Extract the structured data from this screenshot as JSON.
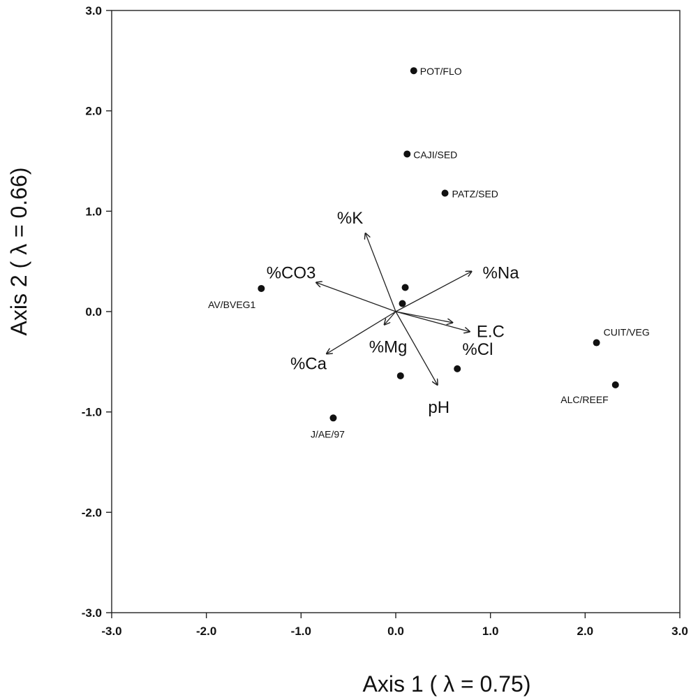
{
  "chart_data": {
    "type": "scatter",
    "title": "",
    "xlabel": "Axis 1 ( λ = 0.75)",
    "ylabel": "Axis 2 ( λ = 0.66)",
    "xlim": [
      -3.0,
      3.0
    ],
    "ylim": [
      -3.0,
      3.0
    ],
    "grid": false,
    "x_ticks": [
      "-3.0",
      "-2.0",
      "-1.0",
      "0.0",
      "1.0",
      "2.0",
      "3.0"
    ],
    "y_ticks": [
      "3.0",
      "2.0",
      "1.0",
      "0.0",
      "-1.0",
      "-2.0",
      "-3.0"
    ],
    "sites": [
      {
        "label": "POT/FLO",
        "x": 0.19,
        "y": 2.4
      },
      {
        "label": "CAJI/SED",
        "x": 0.12,
        "y": 1.57
      },
      {
        "label": "PATZ/SED",
        "x": 0.52,
        "y": 1.18
      },
      {
        "label": "AV/BVEG1",
        "x": -1.42,
        "y": 0.23
      },
      {
        "label": "",
        "x": 0.1,
        "y": 0.24
      },
      {
        "label": "",
        "x": 0.07,
        "y": 0.08
      },
      {
        "label": "CUIT/VEG",
        "x": 2.12,
        "y": -0.31
      },
      {
        "label": "ALC/REEF",
        "x": 2.32,
        "y": -0.73
      },
      {
        "label": "",
        "x": 0.65,
        "y": -0.57
      },
      {
        "label": "",
        "x": 0.05,
        "y": -0.64
      },
      {
        "label": "J/AE/97",
        "x": -0.66,
        "y": -1.06
      }
    ],
    "vectors": [
      {
        "label": "%K",
        "x": -0.32,
        "y": 0.78
      },
      {
        "label": "%CO3",
        "x": -0.84,
        "y": 0.29
      },
      {
        "label": "%Na",
        "x": 0.8,
        "y": 0.4
      },
      {
        "label": "E.C",
        "x": 0.78,
        "y": -0.2
      },
      {
        "label": "%Cl",
        "x": 0.6,
        "y": -0.11
      },
      {
        "label": "pH",
        "x": 0.44,
        "y": -0.73
      },
      {
        "label": "%Mg",
        "x": -0.12,
        "y": -0.13
      },
      {
        "label": "%Ca",
        "x": -0.73,
        "y": -0.42
      }
    ]
  }
}
